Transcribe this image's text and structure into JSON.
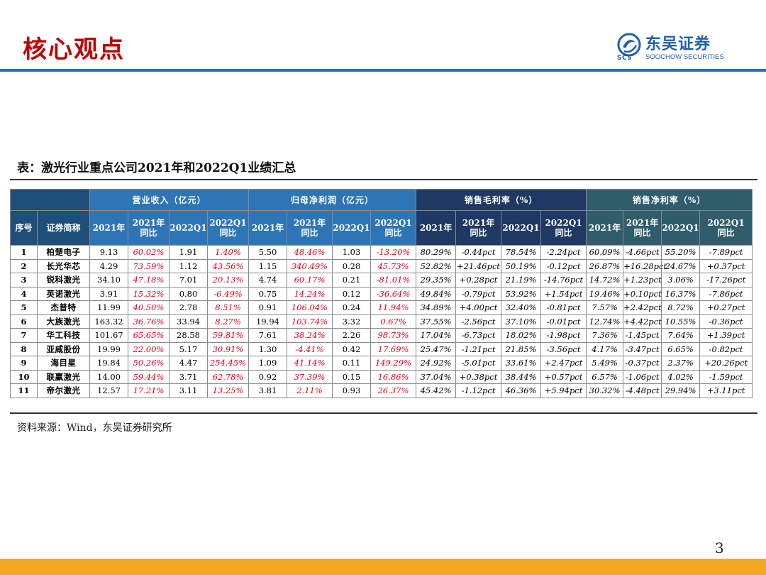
{
  "header": {
    "title": "核心观点",
    "logo_cn": "东吴证券",
    "logo_scs": "SCS",
    "logo_en": "SOOCHOW SECURITIES"
  },
  "table_caption": "表：激光行业重点公司2021年和2022Q1业绩汇总",
  "table": {
    "group_headers": [
      "营业收入（亿元）",
      "归母净利润（亿元）",
      "销售毛利率（%）",
      "销售净利率（%）"
    ],
    "col_seq": "序号",
    "col_name": "证券简称",
    "sub_headers": {
      "y2021": "2021年",
      "y2021_yoy_1": "2021年",
      "y2021_yoy_2": "同比",
      "q1": "2022Q1",
      "q1_yoy_1": "2022Q1",
      "q1_yoy_2": "同比"
    },
    "rows": [
      {
        "seq": "1",
        "name": "柏楚电子",
        "cells": [
          "9.13",
          "60.02%",
          "1.91",
          "1.40%",
          "5.50",
          "48.46%",
          "1.03",
          "-13.20%",
          "80.29%",
          "-0.44pct",
          "78.54%",
          "-2.24pct",
          "60.09%",
          "-4.66pct",
          "55.20%",
          "-7.89pct"
        ]
      },
      {
        "seq": "2",
        "name": "长光华芯",
        "cells": [
          "4.29",
          "73.59%",
          "1.12",
          "43.56%",
          "1.15",
          "340.49%",
          "0.28",
          "45.73%",
          "52.82%",
          "+21.46pct",
          "50.19%",
          "-0.12pct",
          "26.87%",
          "+16.28pct",
          "24.67%",
          "+0.37pct"
        ]
      },
      {
        "seq": "3",
        "name": "锐科激光",
        "cells": [
          "34.10",
          "47.18%",
          "7.01",
          "20.13%",
          "4.74",
          "60.17%",
          "0.21",
          "-81.01%",
          "29.35%",
          "+0.28pct",
          "21.19%",
          "-14.76pct",
          "14.72%",
          "+1.23pct",
          "3.06%",
          "-17.26pct"
        ]
      },
      {
        "seq": "4",
        "name": "英诺激光",
        "cells": [
          "3.91",
          "15.32%",
          "0.80",
          "-6.49%",
          "0.75",
          "14.24%",
          "0.12",
          "-36.64%",
          "49.84%",
          "-0.79pct",
          "53.92%",
          "+1.54pct",
          "19.46%",
          "+0.10pct",
          "16.37%",
          "-7.86pct"
        ]
      },
      {
        "seq": "5",
        "name": "杰普特",
        "cells": [
          "11.99",
          "40.50%",
          "2.78",
          "8.51%",
          "0.91",
          "106.04%",
          "0.24",
          "11.94%",
          "34.89%",
          "+4.00pct",
          "32.40%",
          "-0.81pct",
          "7.57%",
          "+2.42pct",
          "8.72%",
          "+0.27pct"
        ]
      },
      {
        "seq": "6",
        "name": "大族激光",
        "cells": [
          "163.32",
          "36.76%",
          "33.94",
          "8.27%",
          "19.94",
          "103.74%",
          "3.32",
          "0.67%",
          "37.55%",
          "-2.56pct",
          "37.10%",
          "-0.01pct",
          "12.74%",
          "+4.42pct",
          "10.55%",
          "-0.36pct"
        ]
      },
      {
        "seq": "7",
        "name": "华工科技",
        "cells": [
          "101.67",
          "65.65%",
          "28.58",
          "59.81%",
          "7.61",
          "38.24%",
          "2.26",
          "98.73%",
          "17.04%",
          "-6.73pct",
          "18.02%",
          "-1.98pct",
          "7.36%",
          "-1.45pct",
          "7.64%",
          "+1.39pct"
        ]
      },
      {
        "seq": "8",
        "name": "亚威股份",
        "cells": [
          "19.99",
          "22.00%",
          "5.17",
          "30.91%",
          "1.30",
          "-4.41%",
          "0.42",
          "17.69%",
          "25.47%",
          "-1.21pct",
          "21.85%",
          "-3.56pct",
          "4.17%",
          "-3.47pct",
          "6.65%",
          "-0.82pct"
        ]
      },
      {
        "seq": "9",
        "name": "海目星",
        "cells": [
          "19.84",
          "50.26%",
          "4.47",
          "254.45%",
          "1.09",
          "41.14%",
          "0.11",
          "149.29%",
          "24.92%",
          "-5.01pct",
          "33.61%",
          "+2.47pct",
          "5.49%",
          "-0.37pct",
          "2.37%",
          "+20.26pct"
        ]
      },
      {
        "seq": "10",
        "name": "联赢激光",
        "cells": [
          "14.00",
          "59.44%",
          "3.71",
          "62.78%",
          "0.92",
          "37.39%",
          "0.15",
          "16.86%",
          "37.04%",
          "+0.38pct",
          "38.44%",
          "+0.57pct",
          "6.57%",
          "-1.06pct",
          "4.02%",
          "-1.59pct"
        ]
      },
      {
        "seq": "11",
        "name": "帝尔激光",
        "cells": [
          "12.57",
          "17.21%",
          "3.11",
          "13.25%",
          "3.81",
          "2.11%",
          "0.93",
          "26.37%",
          "45.42%",
          "-1.12pct",
          "46.36%",
          "+5.94pct",
          "30.32%",
          "-4.48pct",
          "29.94%",
          "+3.11pct"
        ]
      }
    ]
  },
  "source_note": "资料来源：Wind，东吴证券研究所",
  "page_number": "3",
  "colors": {
    "title_red": "#c00000",
    "accent_blue": "#1f6fbf",
    "value_red": "#e0001b",
    "footer_orange": "#f6a623"
  }
}
